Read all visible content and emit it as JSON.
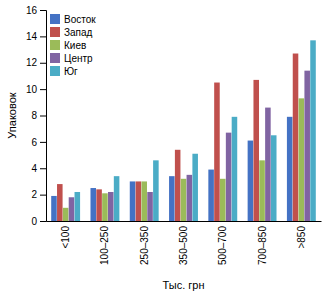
{
  "chart_data": {
    "type": "bar",
    "categories": [
      "<100",
      "100–250",
      "250–350",
      "350–500",
      "500–700",
      "700–850",
      ">850"
    ],
    "series": [
      {
        "name": "Восток",
        "color": "#4472C4",
        "values": [
          1.9,
          2.5,
          3.0,
          3.4,
          3.9,
          6.1,
          7.9
        ]
      },
      {
        "name": "Запад",
        "color": "#C0504D",
        "values": [
          2.8,
          2.4,
          3.0,
          5.4,
          10.5,
          10.7,
          12.7
        ]
      },
      {
        "name": "Киев",
        "color": "#9BBB59",
        "values": [
          1.0,
          2.1,
          3.0,
          3.2,
          3.2,
          4.6,
          9.3
        ]
      },
      {
        "name": "Центр",
        "color": "#8064A2",
        "values": [
          1.8,
          2.2,
          2.2,
          3.5,
          6.7,
          8.6,
          11.4
        ]
      },
      {
        "name": "Юг",
        "color": "#4BACC6",
        "values": [
          2.2,
          3.4,
          4.6,
          5.1,
          7.9,
          6.5,
          13.7
        ]
      }
    ],
    "xlabel": "Тыс. грн",
    "ylabel": "Упаковок",
    "ylim": [
      0,
      16
    ],
    "yticks": [
      0,
      2,
      4,
      6,
      8,
      10,
      12,
      14,
      16
    ],
    "legend": "upper left",
    "grid": false
  }
}
